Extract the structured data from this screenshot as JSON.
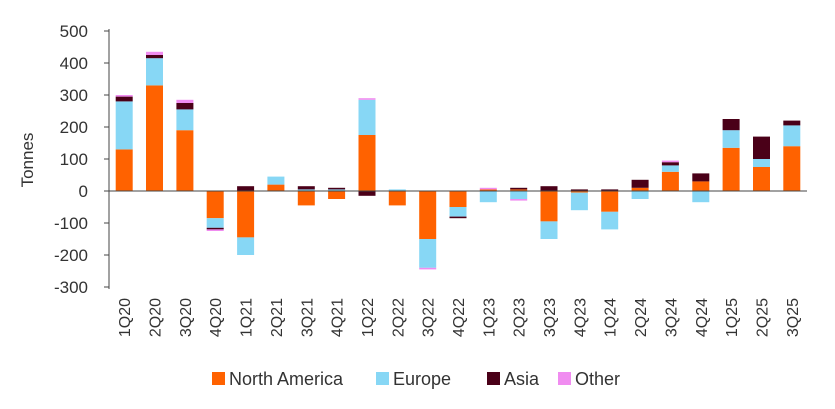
{
  "chart_data": {
    "type": "bar",
    "stacked": true,
    "title": "",
    "xlabel": "",
    "ylabel": "Tonnes",
    "ylim": [
      -300,
      500
    ],
    "yticks": [
      -300,
      -200,
      -100,
      0,
      100,
      200,
      300,
      400,
      500
    ],
    "grid": false,
    "legend_position": "bottom",
    "categories": [
      "1Q20",
      "2Q20",
      "3Q20",
      "4Q20",
      "1Q21",
      "2Q21",
      "3Q21",
      "4Q21",
      "1Q22",
      "2Q22",
      "3Q22",
      "4Q22",
      "1Q23",
      "2Q23",
      "3Q23",
      "4Q23",
      "1Q24",
      "2Q24",
      "3Q24",
      "4Q24",
      "1Q25",
      "2Q25",
      "3Q25"
    ],
    "series": [
      {
        "name": "North America",
        "color": "#FF6200",
        "values": [
          130,
          330,
          190,
          -85,
          -145,
          20,
          -45,
          -25,
          175,
          -45,
          -150,
          -50,
          5,
          5,
          -95,
          -5,
          -65,
          10,
          60,
          30,
          135,
          75,
          140
        ]
      },
      {
        "name": "Europe",
        "color": "#87D7F5",
        "values": [
          150,
          85,
          65,
          -30,
          -55,
          25,
          5,
          5,
          110,
          5,
          -90,
          -30,
          -35,
          -25,
          -55,
          -55,
          -55,
          -25,
          20,
          -35,
          55,
          25,
          65
        ]
      },
      {
        "name": "Asia",
        "color": "#4A0018",
        "values": [
          15,
          10,
          20,
          -5,
          15,
          0,
          10,
          5,
          -15,
          0,
          0,
          -5,
          0,
          5,
          15,
          5,
          5,
          25,
          10,
          25,
          35,
          70,
          15
        ]
      },
      {
        "name": "Other",
        "color": "#F08CF0",
        "values": [
          5,
          10,
          10,
          -5,
          0,
          0,
          0,
          0,
          5,
          0,
          -5,
          0,
          5,
          -5,
          0,
          0,
          0,
          0,
          5,
          0,
          0,
          0,
          0
        ]
      }
    ]
  }
}
